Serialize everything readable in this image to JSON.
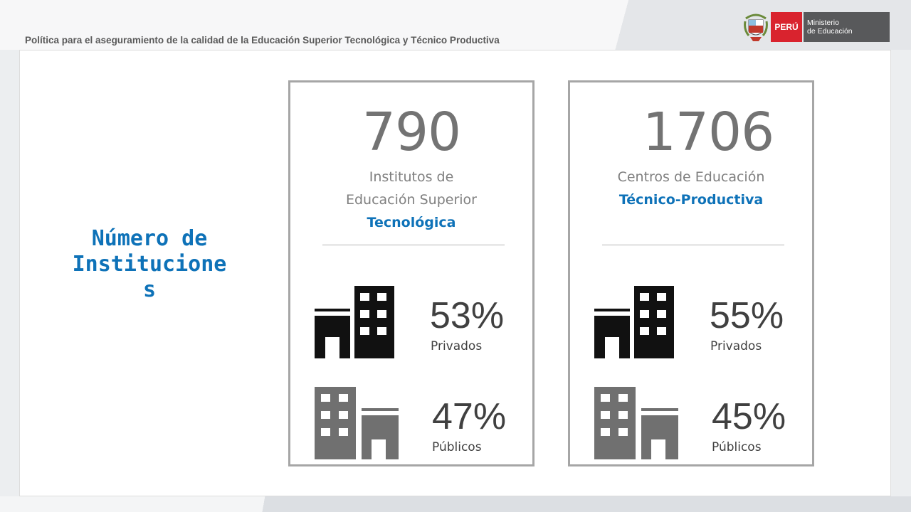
{
  "header": {
    "title": "Política para el aseguramiento de la calidad de la Educación Superior Tecnológica y Técnico Productiva"
  },
  "logo": {
    "country": "PERÚ",
    "ministry_line1": "Ministerio",
    "ministry_line2": "de Educación",
    "colors": {
      "red": "#d9232e",
      "gray": "#58595b"
    }
  },
  "side_title": "Número de Institucione s",
  "cards": [
    {
      "total": "790",
      "line1": "Institutos de",
      "line2": "Educación Superior",
      "accent": "Tecnológica",
      "private": {
        "pct": "53%",
        "label": "Privados",
        "icon": "private-building-icon"
      },
      "public": {
        "pct": "47%",
        "label": "Públicos",
        "icon": "public-building-icon"
      }
    },
    {
      "total": "1706",
      "line1": "Centros de Educación",
      "accent": "Técnico-Productiva",
      "private": {
        "pct": "55%",
        "label": "Privados",
        "icon": "private-building-icon"
      },
      "public": {
        "pct": "45%",
        "label": "Públicos",
        "icon": "public-building-icon"
      }
    }
  ],
  "colors": {
    "accent": "#0e72b8",
    "number": "#737373",
    "private_icon": "#111111",
    "public_icon": "#707070",
    "card_border": "#a6a6a6"
  }
}
